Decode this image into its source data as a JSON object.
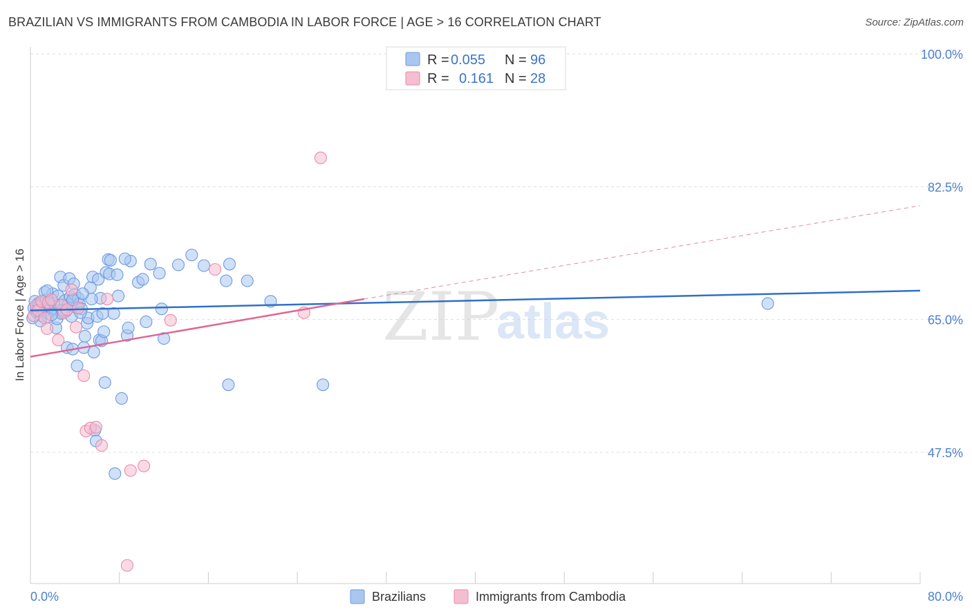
{
  "title": "BRAZILIAN VS IMMIGRANTS FROM CAMBODIA IN LABOR FORCE | AGE > 16 CORRELATION CHART",
  "source": "Source: ZipAtlas.com",
  "watermark": {
    "part1": "ZIP",
    "part2": "atlas"
  },
  "colors": {
    "blue_fill": "#a9c6f0",
    "blue_stroke": "#6b9ae0",
    "blue_line": "#2f6fcc",
    "pink_fill": "#f5bdd0",
    "pink_stroke": "#e88aaa",
    "pink_line": "#e06693",
    "grid": "#dddddd",
    "tick_text": "#4a7fcf"
  },
  "legend": {
    "row1": {
      "r_label": "R =",
      "r_value": "0.055",
      "n_label": "N =",
      "n_value": "96"
    },
    "row2": {
      "r_label": "R =",
      "r_value": "0.161",
      "n_label": "N =",
      "n_value": "28"
    }
  },
  "bottom_legend": [
    "Brazilians",
    "Immigrants from Cambodia"
  ],
  "chart_data": {
    "type": "scatter",
    "title": "BRAZILIAN VS IMMIGRANTS FROM CAMBODIA IN LABOR FORCE | AGE > 16 CORRELATION CHART",
    "xlabel": "",
    "ylabel": "In Labor Force | Age > 16",
    "xlim": [
      0,
      80
    ],
    "ylim": [
      30,
      103
    ],
    "x_tick_labels": [
      "0.0%",
      "80.0%"
    ],
    "y_ticks": [
      47.5,
      65.0,
      82.5,
      100.0
    ],
    "y_tick_labels": [
      "47.5%",
      "65.0%",
      "82.5%",
      "100.0%"
    ],
    "series": [
      {
        "name": "Brazilians",
        "R": 0.055,
        "N": 96,
        "trend": {
          "x": [
            0,
            80
          ],
          "y": [
            66.2,
            68.8
          ],
          "style": "solid"
        },
        "points": [
          [
            0.2,
            65.2
          ],
          [
            0.3,
            66.5
          ],
          [
            0.4,
            67.4
          ],
          [
            0.5,
            66.1
          ],
          [
            0.6,
            65.9
          ],
          [
            0.7,
            67.1
          ],
          [
            0.8,
            66.8
          ],
          [
            1.0,
            65.5
          ],
          [
            1.1,
            67.3
          ],
          [
            1.2,
            66.0
          ],
          [
            1.4,
            67.6
          ],
          [
            1.5,
            66.4
          ],
          [
            1.6,
            65.3
          ],
          [
            1.7,
            67.0
          ],
          [
            1.8,
            66.7
          ],
          [
            2.0,
            68.4
          ],
          [
            2.1,
            67.2
          ],
          [
            2.2,
            66.3
          ],
          [
            2.3,
            63.9
          ],
          [
            2.4,
            65.1
          ],
          [
            2.5,
            68.1
          ],
          [
            2.6,
            66.9
          ],
          [
            2.7,
            70.6
          ],
          [
            2.8,
            65.8
          ],
          [
            3.0,
            69.5
          ],
          [
            3.1,
            67.5
          ],
          [
            3.2,
            66.1
          ],
          [
            3.3,
            61.3
          ],
          [
            3.4,
            67.0
          ],
          [
            3.5,
            70.4
          ],
          [
            3.6,
            68.0
          ],
          [
            3.7,
            65.4
          ],
          [
            3.8,
            61.1
          ],
          [
            3.9,
            69.7
          ],
          [
            4.0,
            68.3
          ],
          [
            4.1,
            66.6
          ],
          [
            4.2,
            58.9
          ],
          [
            4.3,
            67.8
          ],
          [
            4.4,
            67.1
          ],
          [
            4.6,
            66.4
          ],
          [
            4.8,
            61.3
          ],
          [
            4.9,
            62.8
          ],
          [
            5.1,
            64.5
          ],
          [
            5.2,
            65.2
          ],
          [
            5.4,
            69.2
          ],
          [
            5.6,
            70.6
          ],
          [
            5.7,
            60.7
          ],
          [
            5.8,
            50.4
          ],
          [
            5.9,
            49.0
          ],
          [
            6.0,
            65.4
          ],
          [
            6.1,
            70.3
          ],
          [
            6.2,
            62.3
          ],
          [
            6.3,
            67.8
          ],
          [
            6.4,
            62.2
          ],
          [
            6.5,
            65.8
          ],
          [
            6.7,
            56.7
          ],
          [
            6.8,
            71.2
          ],
          [
            7.0,
            72.9
          ],
          [
            7.1,
            71.0
          ],
          [
            7.2,
            72.8
          ],
          [
            7.5,
            65.8
          ],
          [
            7.6,
            44.7
          ],
          [
            7.8,
            70.9
          ],
          [
            8.2,
            54.6
          ],
          [
            8.7,
            62.9
          ],
          [
            8.8,
            63.9
          ],
          [
            9.0,
            72.7
          ],
          [
            9.7,
            69.9
          ],
          [
            10.1,
            70.3
          ],
          [
            10.4,
            64.7
          ],
          [
            10.8,
            72.3
          ],
          [
            11.6,
            71.1
          ],
          [
            11.8,
            66.4
          ],
          [
            12.0,
            62.5
          ],
          [
            13.3,
            72.2
          ],
          [
            14.5,
            73.5
          ],
          [
            15.6,
            72.1
          ],
          [
            17.9,
            72.3
          ],
          [
            17.6,
            70.1
          ],
          [
            17.8,
            56.4
          ],
          [
            19.5,
            70.1
          ],
          [
            21.6,
            67.4
          ],
          [
            26.3,
            56.4
          ],
          [
            66.3,
            67.1
          ],
          [
            1.3,
            68.6
          ],
          [
            2.9,
            66.2
          ],
          [
            4.5,
            65.9
          ],
          [
            5.5,
            67.7
          ],
          [
            0.9,
            64.8
          ],
          [
            1.9,
            65.6
          ],
          [
            6.6,
            63.4
          ],
          [
            8.5,
            73.0
          ],
          [
            3.8,
            67.6
          ],
          [
            4.7,
            68.4
          ],
          [
            7.9,
            68.1
          ],
          [
            1.5,
            68.8
          ]
        ]
      },
      {
        "name": "Immigrants from Cambodia",
        "R": 0.161,
        "N": 28,
        "trend": {
          "x": [
            0,
            30,
            80
          ],
          "y": [
            60.1,
            67.7,
            80.0
          ],
          "style": "solid-then-dashed"
        },
        "points": [
          [
            0.3,
            65.5
          ],
          [
            0.5,
            66.8
          ],
          [
            0.7,
            66.2
          ],
          [
            1.0,
            67.4
          ],
          [
            1.3,
            65.2
          ],
          [
            1.5,
            63.8
          ],
          [
            1.6,
            67.2
          ],
          [
            1.9,
            67.6
          ],
          [
            2.5,
            62.3
          ],
          [
            2.8,
            66.9
          ],
          [
            3.0,
            65.9
          ],
          [
            3.3,
            66.3
          ],
          [
            3.7,
            68.9
          ],
          [
            4.1,
            64.0
          ],
          [
            4.3,
            66.5
          ],
          [
            4.8,
            57.6
          ],
          [
            5.0,
            50.3
          ],
          [
            5.4,
            50.7
          ],
          [
            5.9,
            50.8
          ],
          [
            6.4,
            48.4
          ],
          [
            6.9,
            67.7
          ],
          [
            9.0,
            45.1
          ],
          [
            10.2,
            45.7
          ],
          [
            12.6,
            64.9
          ],
          [
            16.6,
            71.6
          ],
          [
            24.6,
            65.9
          ],
          [
            26.1,
            86.3
          ],
          [
            8.7,
            32.6
          ]
        ]
      }
    ]
  }
}
